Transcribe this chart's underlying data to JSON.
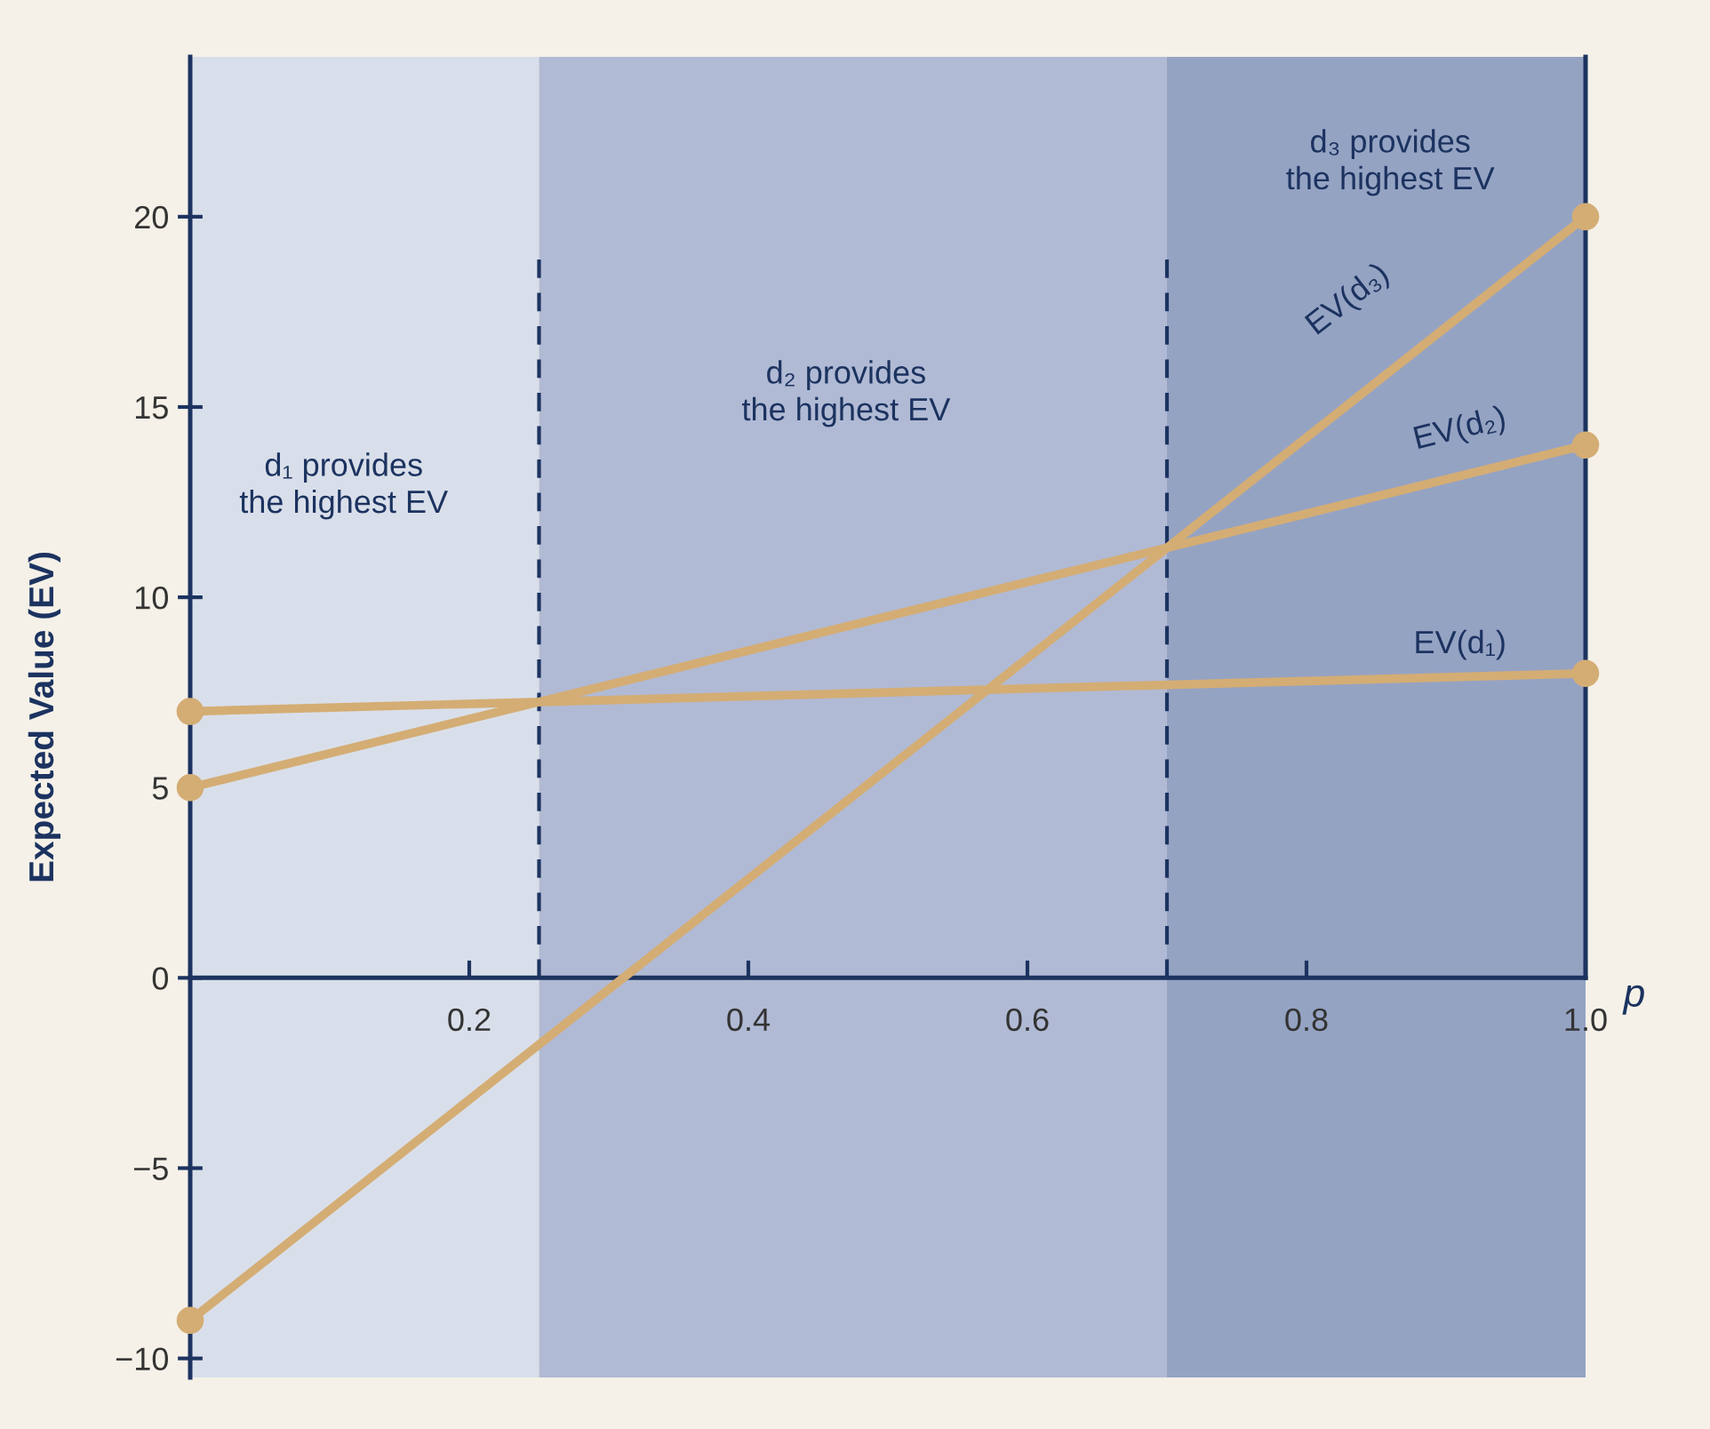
{
  "chart_data": {
    "type": "line",
    "xlabel": "p",
    "ylabel": "Expected Value (EV)",
    "x": [
      0,
      1.0
    ],
    "series": [
      {
        "name": "EV(d₁)",
        "color": "#d4ad74",
        "values": [
          7,
          8
        ]
      },
      {
        "name": "EV(d₂)",
        "color": "#d4ad74",
        "values": [
          5,
          14
        ]
      },
      {
        "name": "EV(d₃)",
        "color": "#d4ad74",
        "values": [
          -9,
          20
        ]
      }
    ],
    "xlim": [
      0,
      1.0
    ],
    "ylim": [
      -10.5,
      24.2
    ],
    "xticks": [
      0.2,
      0.4,
      0.6,
      0.8,
      {
        "value": 1.0,
        "label": "1.0"
      }
    ],
    "yticks": [
      -10,
      -5,
      0,
      5,
      10,
      15,
      20
    ],
    "marker": "circle",
    "line_style": "solid",
    "grid": false,
    "legend": false,
    "bands": [
      {
        "axis": "x",
        "from": 0,
        "to": 0.25,
        "color": "#d9dfea"
      },
      {
        "axis": "x",
        "from": 0.25,
        "to": 0.7,
        "color": "#b1bad4"
      },
      {
        "axis": "x",
        "from": 0.7,
        "to": 1.0,
        "color": "#95a3c3"
      }
    ],
    "ref_lines": [
      {
        "axis": "x",
        "value": 0.25,
        "color": "#1c3360",
        "line_style": "dashed"
      },
      {
        "axis": "x",
        "value": 0.7,
        "color": "#1c3360",
        "line_style": "dashed"
      }
    ],
    "annotations": [
      "d₁ provides\nthe highest EV",
      "d₂ provides\nthe highest EV",
      "d₃ provides\nthe highest EV"
    ]
  }
}
